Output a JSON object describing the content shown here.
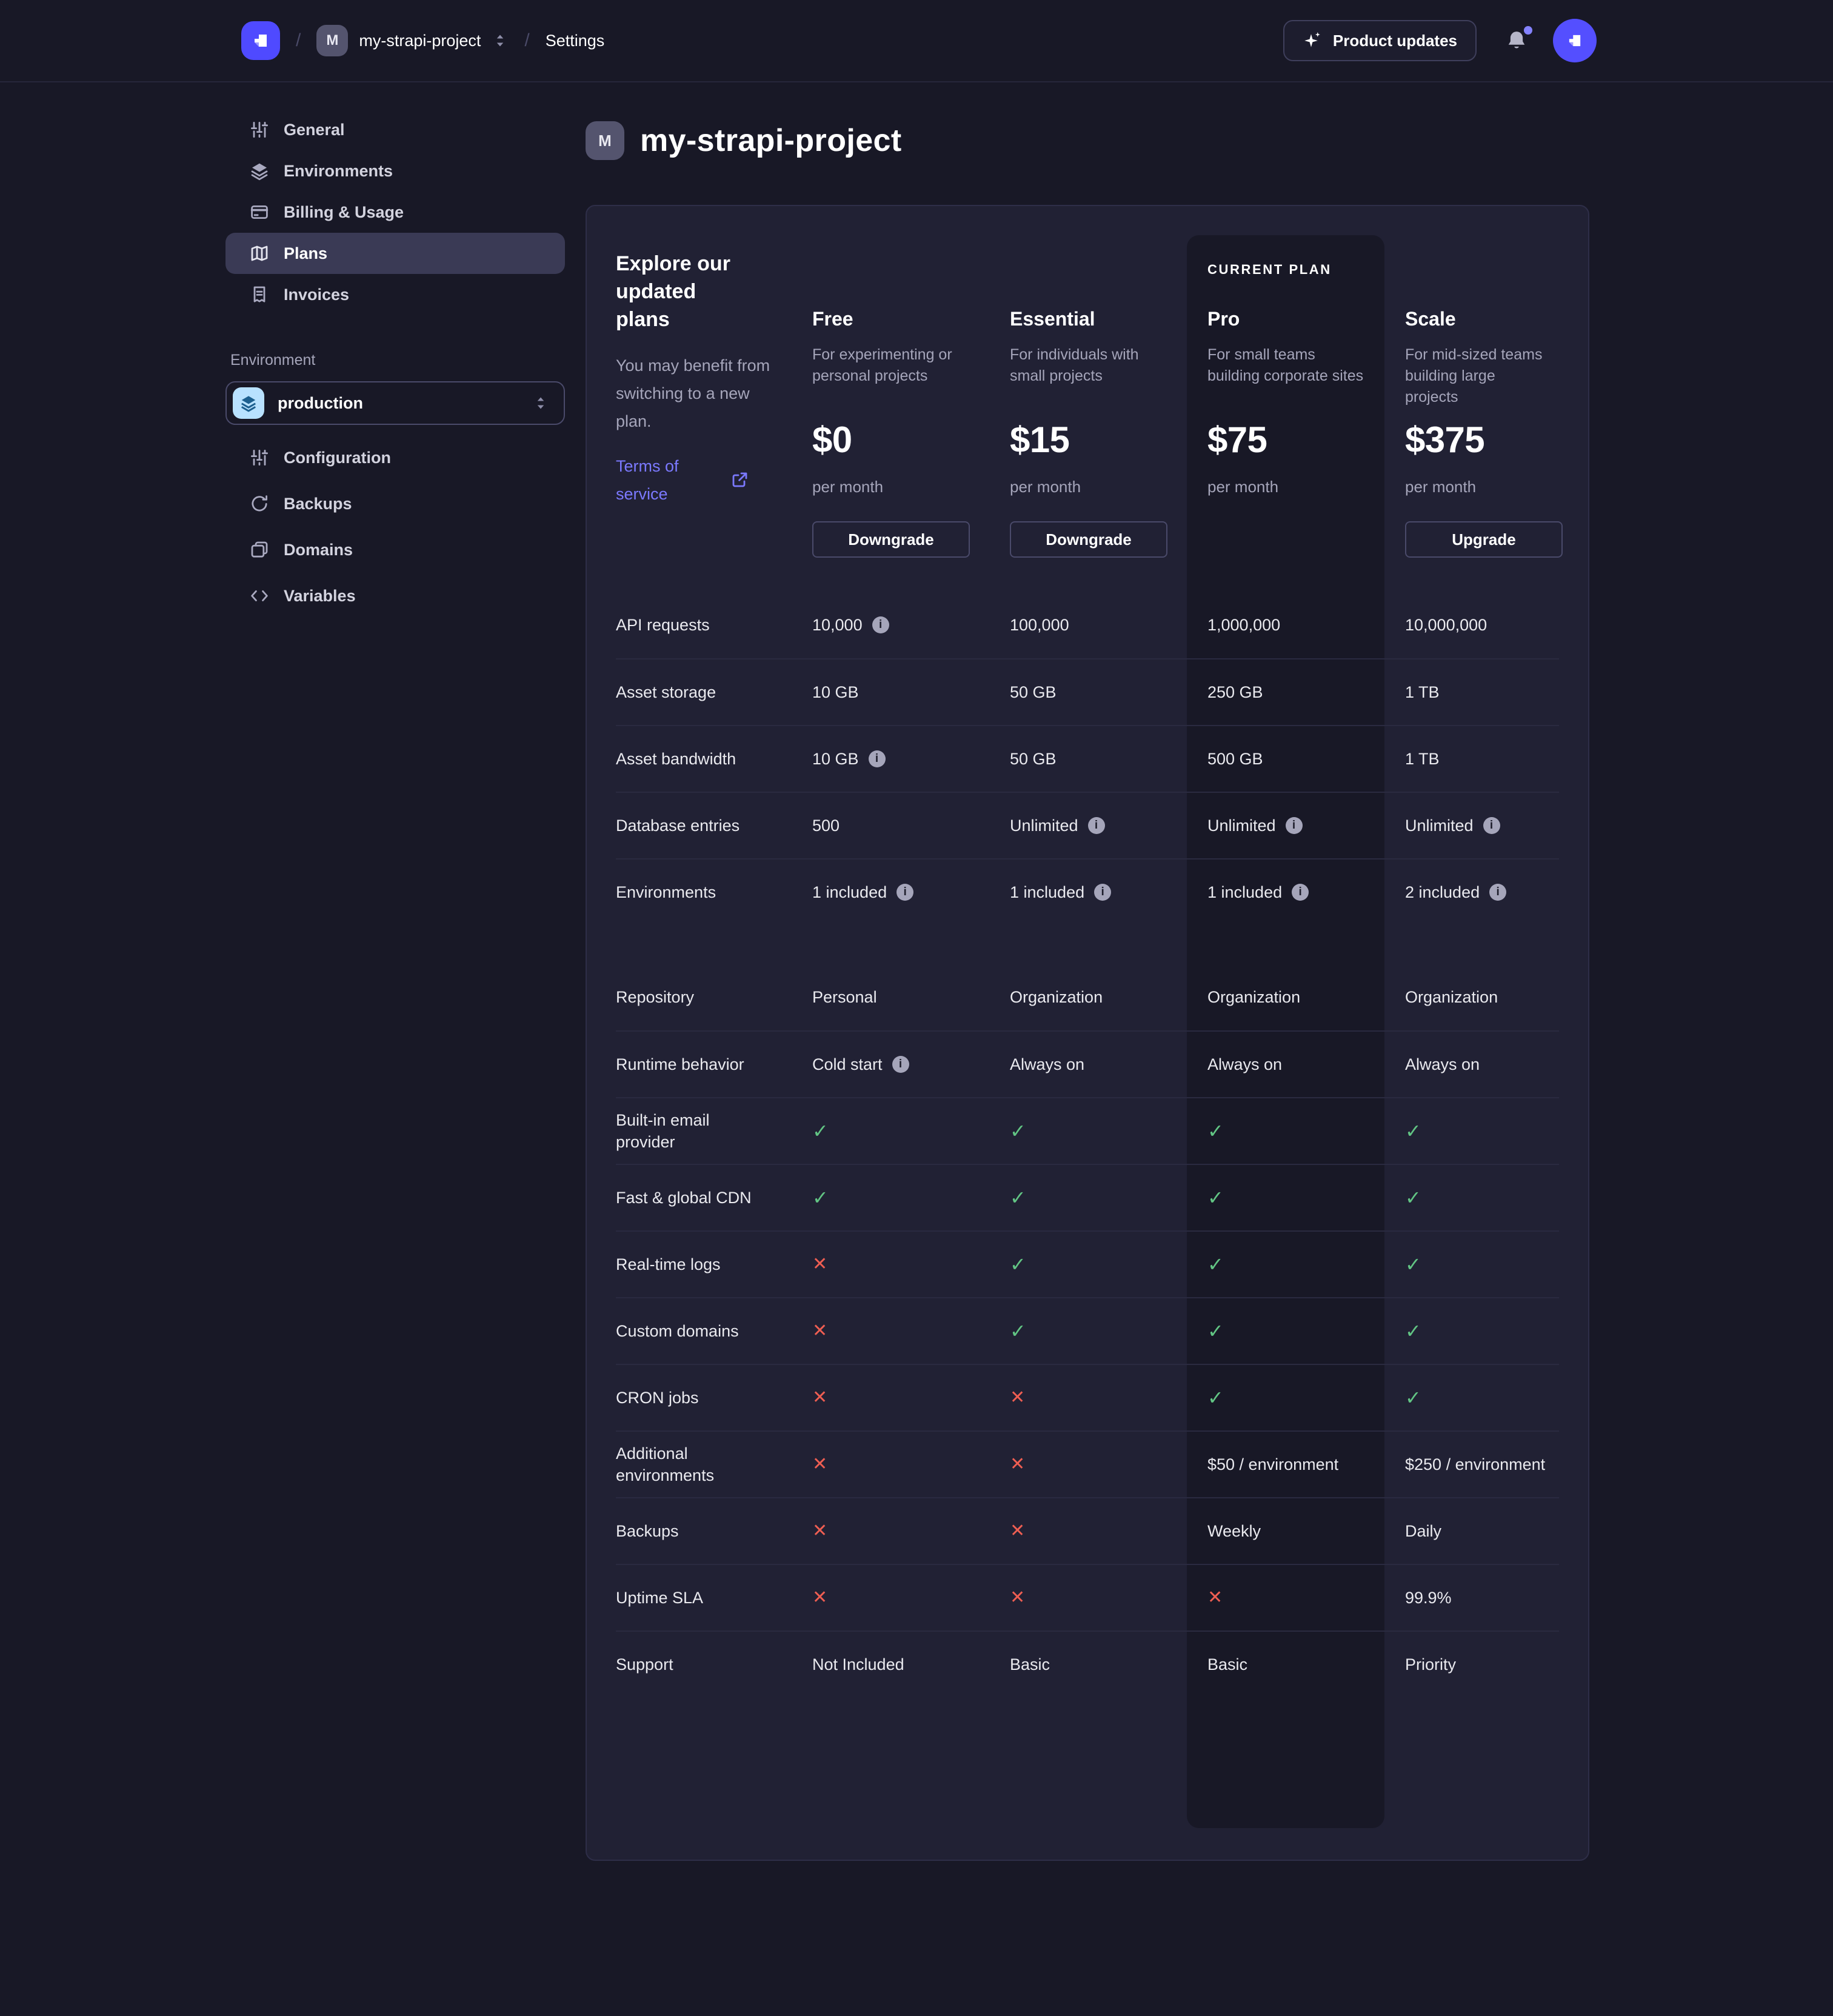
{
  "colors": {
    "accent": "#4f4aff",
    "link": "#7b79ff",
    "success": "#62c584",
    "danger": "#ee5e52",
    "env_icon_bg": "#b8e1ff"
  },
  "topbar": {
    "breadcrumb": {
      "separator": "/",
      "project_initial": "M",
      "project_name": "my-strapi-project",
      "section": "Settings"
    },
    "product_updates_label": "Product updates"
  },
  "sidebar": {
    "project_items": [
      {
        "label": "General",
        "icon": "sliders-icon",
        "active": false
      },
      {
        "label": "Environments",
        "icon": "layers-icon",
        "active": false
      },
      {
        "label": "Billing & Usage",
        "icon": "credit-card-icon",
        "active": false
      },
      {
        "label": "Plans",
        "icon": "map-icon",
        "active": true
      },
      {
        "label": "Invoices",
        "icon": "receipt-icon",
        "active": false
      }
    ],
    "environment_label": "Environment",
    "environment_select": {
      "value": "production",
      "icon": "layers-icon"
    },
    "environment_items": [
      {
        "label": "Configuration",
        "icon": "sliders-icon"
      },
      {
        "label": "Backups",
        "icon": "refresh-icon"
      },
      {
        "label": "Domains",
        "icon": "pages-icon"
      },
      {
        "label": "Variables",
        "icon": "code-icon"
      }
    ]
  },
  "main": {
    "project_initial": "M",
    "title": "my-strapi-project"
  },
  "plans": {
    "intro": {
      "heading": "Explore our updated plans",
      "description": "You may benefit from switching to a new plan.",
      "link_label": "Terms of service"
    },
    "current_plan_label": "CURRENT PLAN",
    "columns": [
      {
        "name": "Free",
        "description": "For experimenting or personal projects",
        "price": "$0",
        "period": "per month",
        "action": "Downgrade",
        "current": false
      },
      {
        "name": "Essential",
        "description": "For individuals with small projects",
        "price": "$15",
        "period": "per month",
        "action": "Downgrade",
        "current": false
      },
      {
        "name": "Pro",
        "description": "For small teams building corporate sites",
        "price": "$75",
        "period": "per month",
        "action": null,
        "current": true
      },
      {
        "name": "Scale",
        "description": "For mid-sized teams building large projects",
        "price": "$375",
        "period": "per month",
        "action": "Upgrade",
        "current": false
      }
    ],
    "rows": [
      {
        "label": "API requests",
        "cells": [
          {
            "v": "10,000",
            "info": true
          },
          {
            "v": "100,000"
          },
          {
            "v": "1,000,000"
          },
          {
            "v": "10,000,000"
          }
        ]
      },
      {
        "label": "Asset storage",
        "cells": [
          {
            "v": "10 GB"
          },
          {
            "v": "50 GB"
          },
          {
            "v": "250 GB"
          },
          {
            "v": "1 TB"
          }
        ]
      },
      {
        "label": "Asset bandwidth",
        "cells": [
          {
            "v": "10 GB",
            "info": true
          },
          {
            "v": "50 GB"
          },
          {
            "v": "500 GB"
          },
          {
            "v": "1 TB"
          }
        ]
      },
      {
        "label": "Database entries",
        "cells": [
          {
            "v": "500"
          },
          {
            "v": "Unlimited",
            "info": true
          },
          {
            "v": "Unlimited",
            "info": true
          },
          {
            "v": "Unlimited",
            "info": true
          }
        ]
      },
      {
        "label": "Environments",
        "cells": [
          {
            "v": "1 included",
            "info": true
          },
          {
            "v": "1 included",
            "info": true
          },
          {
            "v": "1 included",
            "info": true
          },
          {
            "v": "2 included",
            "info": true
          }
        ]
      },
      {
        "label": "Repository",
        "section_start": true,
        "cells": [
          {
            "v": "Personal"
          },
          {
            "v": "Organization"
          },
          {
            "v": "Organization"
          },
          {
            "v": "Organization"
          }
        ]
      },
      {
        "label": "Runtime behavior",
        "cells": [
          {
            "v": "Cold start",
            "info": true
          },
          {
            "v": "Always on"
          },
          {
            "v": "Always on"
          },
          {
            "v": "Always on"
          }
        ]
      },
      {
        "label": "Built-in email provider",
        "cells": [
          {
            "check": true
          },
          {
            "check": true
          },
          {
            "check": true
          },
          {
            "check": true
          }
        ]
      },
      {
        "label": "Fast & global CDN",
        "cells": [
          {
            "check": true
          },
          {
            "check": true
          },
          {
            "check": true
          },
          {
            "check": true
          }
        ]
      },
      {
        "label": "Real-time logs",
        "cells": [
          {
            "cross": true
          },
          {
            "check": true
          },
          {
            "check": true
          },
          {
            "check": true
          }
        ]
      },
      {
        "label": "Custom domains",
        "cells": [
          {
            "cross": true
          },
          {
            "check": true
          },
          {
            "check": true
          },
          {
            "check": true
          }
        ]
      },
      {
        "label": "CRON jobs",
        "cells": [
          {
            "cross": true
          },
          {
            "cross": true
          },
          {
            "check": true
          },
          {
            "check": true
          }
        ]
      },
      {
        "label": "Additional environments",
        "cells": [
          {
            "cross": true
          },
          {
            "cross": true
          },
          {
            "v": "$50 / environment"
          },
          {
            "v": "$250 / environment"
          }
        ]
      },
      {
        "label": "Backups",
        "cells": [
          {
            "cross": true
          },
          {
            "cross": true
          },
          {
            "v": "Weekly"
          },
          {
            "v": "Daily"
          }
        ]
      },
      {
        "label": "Uptime SLA",
        "cells": [
          {
            "cross": true
          },
          {
            "cross": true
          },
          {
            "cross": true
          },
          {
            "v": "99.9%"
          }
        ]
      },
      {
        "label": "Support",
        "cells": [
          {
            "v": "Not Included"
          },
          {
            "v": "Basic"
          },
          {
            "v": "Basic"
          },
          {
            "v": "Priority"
          }
        ]
      }
    ]
  }
}
